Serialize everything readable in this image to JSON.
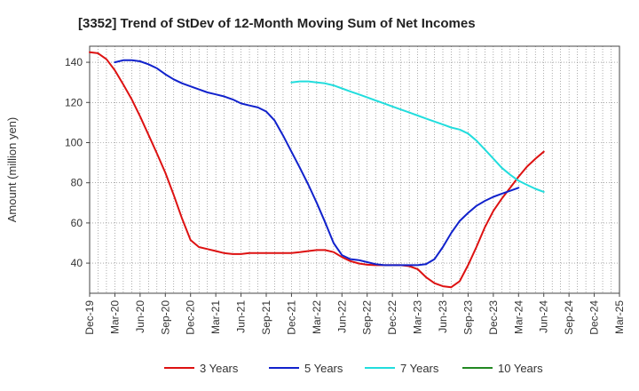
{
  "chart_data": {
    "type": "line",
    "title": "[3352]  Trend of StDev of 12-Month Moving Sum of Net Incomes",
    "ylabel": "Amount (million yen)",
    "xlabel": "",
    "ylim": [
      25,
      148
    ],
    "yticks": [
      40,
      60,
      80,
      100,
      120,
      140
    ],
    "x_tick_labels": [
      "Dec-19",
      "Mar-20",
      "Jun-20",
      "Sep-20",
      "Dec-20",
      "Mar-21",
      "Jun-21",
      "Sep-21",
      "Dec-21",
      "Mar-22",
      "Jun-22",
      "Sep-22",
      "Dec-22",
      "Mar-23",
      "Jun-23",
      "Sep-23",
      "Dec-23",
      "Mar-24",
      "Jun-24",
      "Sep-24",
      "Dec-24",
      "Mar-25"
    ],
    "grid": true,
    "legend_position": "bottom",
    "series": [
      {
        "name": "3 Years",
        "color": "#dd1111",
        "points": [
          [
            0,
            145
          ],
          [
            0.33,
            144.5
          ],
          [
            0.67,
            141.5
          ],
          [
            1,
            136
          ],
          [
            1.33,
            129
          ],
          [
            1.67,
            121.5
          ],
          [
            2,
            113
          ],
          [
            2.33,
            104
          ],
          [
            2.67,
            94.5
          ],
          [
            3,
            85
          ],
          [
            3.33,
            74
          ],
          [
            3.67,
            62
          ],
          [
            4,
            51.5
          ],
          [
            4.33,
            48
          ],
          [
            4.67,
            47
          ],
          [
            5,
            46
          ],
          [
            5.33,
            45
          ],
          [
            5.67,
            44.5
          ],
          [
            6,
            44.5
          ],
          [
            6.33,
            45
          ],
          [
            6.67,
            45
          ],
          [
            7,
            45
          ],
          [
            7.33,
            45
          ],
          [
            7.67,
            45
          ],
          [
            8,
            45
          ],
          [
            8.33,
            45.5
          ],
          [
            8.67,
            46
          ],
          [
            9,
            46.5
          ],
          [
            9.33,
            46.5
          ],
          [
            9.67,
            45.5
          ],
          [
            10,
            43
          ],
          [
            10.33,
            41
          ],
          [
            10.67,
            39.8
          ],
          [
            11,
            39.2
          ],
          [
            11.33,
            39
          ],
          [
            11.67,
            39
          ],
          [
            12,
            39
          ],
          [
            12.33,
            39
          ],
          [
            12.67,
            38.5
          ],
          [
            13,
            37
          ],
          [
            13.33,
            33
          ],
          [
            13.67,
            30
          ],
          [
            14,
            28.5
          ],
          [
            14.33,
            28
          ],
          [
            14.67,
            31
          ],
          [
            15,
            39
          ],
          [
            15.33,
            48
          ],
          [
            15.67,
            58
          ],
          [
            16,
            66
          ],
          [
            16.33,
            72
          ],
          [
            16.67,
            77.5
          ],
          [
            17,
            83
          ],
          [
            17.33,
            88
          ],
          [
            17.67,
            92
          ],
          [
            18,
            95.5
          ]
        ]
      },
      {
        "name": "5 Years",
        "color": "#1122cc",
        "points": [
          [
            1,
            140
          ],
          [
            1.33,
            141
          ],
          [
            1.67,
            141
          ],
          [
            2,
            140.5
          ],
          [
            2.33,
            139
          ],
          [
            2.67,
            137
          ],
          [
            3,
            134
          ],
          [
            3.33,
            131.5
          ],
          [
            3.67,
            129.5
          ],
          [
            4,
            128
          ],
          [
            4.33,
            126.5
          ],
          [
            4.67,
            125
          ],
          [
            5,
            124
          ],
          [
            5.33,
            123
          ],
          [
            5.67,
            121.5
          ],
          [
            6,
            119.5
          ],
          [
            6.33,
            118.5
          ],
          [
            6.67,
            117.5
          ],
          [
            7,
            115.5
          ],
          [
            7.33,
            111
          ],
          [
            7.67,
            103.5
          ],
          [
            8,
            95.5
          ],
          [
            8.33,
            87.5
          ],
          [
            8.67,
            79
          ],
          [
            9,
            70
          ],
          [
            9.33,
            60.5
          ],
          [
            9.67,
            50
          ],
          [
            10,
            44
          ],
          [
            10.33,
            42
          ],
          [
            10.67,
            41.5
          ],
          [
            11,
            40.5
          ],
          [
            11.33,
            39.5
          ],
          [
            11.67,
            39
          ],
          [
            12,
            39
          ],
          [
            12.33,
            39
          ],
          [
            12.67,
            39
          ],
          [
            13,
            39
          ],
          [
            13.33,
            39.5
          ],
          [
            13.67,
            42
          ],
          [
            14,
            48
          ],
          [
            14.33,
            55
          ],
          [
            14.67,
            61
          ],
          [
            15,
            65
          ],
          [
            15.33,
            68.5
          ],
          [
            15.67,
            71
          ],
          [
            16,
            73
          ],
          [
            16.33,
            74.5
          ],
          [
            16.67,
            76
          ],
          [
            17,
            77.5
          ]
        ]
      },
      {
        "name": "7 Years",
        "color": "#22dddd",
        "points": [
          [
            8,
            130
          ],
          [
            8.33,
            130.5
          ],
          [
            8.67,
            130.5
          ],
          [
            9,
            130
          ],
          [
            9.33,
            129.5
          ],
          [
            9.67,
            128.5
          ],
          [
            10,
            127
          ],
          [
            10.33,
            125.5
          ],
          [
            10.67,
            124
          ],
          [
            11,
            122.5
          ],
          [
            11.33,
            121
          ],
          [
            11.67,
            119.5
          ],
          [
            12,
            118
          ],
          [
            12.33,
            116.5
          ],
          [
            12.67,
            115
          ],
          [
            13,
            113.5
          ],
          [
            13.33,
            112
          ],
          [
            13.67,
            110.5
          ],
          [
            14,
            109
          ],
          [
            14.33,
            107.5
          ],
          [
            14.67,
            106.5
          ],
          [
            15,
            104.5
          ],
          [
            15.33,
            101
          ],
          [
            15.67,
            96.5
          ],
          [
            16,
            92
          ],
          [
            16.33,
            87.5
          ],
          [
            16.67,
            84
          ],
          [
            17,
            81
          ],
          [
            17.33,
            79
          ],
          [
            17.67,
            77
          ],
          [
            18,
            75.5
          ]
        ]
      },
      {
        "name": "10 Years",
        "color": "#228822",
        "points": []
      }
    ]
  }
}
